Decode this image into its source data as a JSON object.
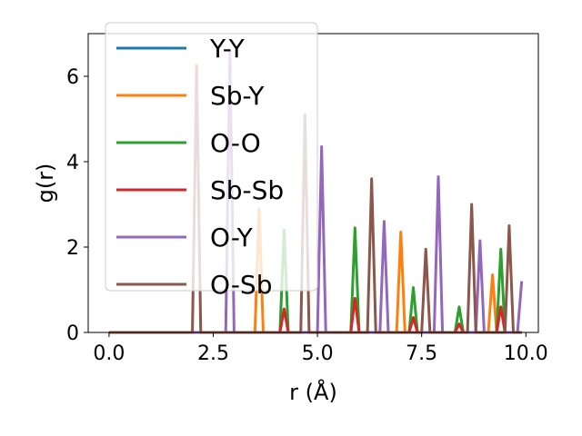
{
  "chart_data": {
    "type": "line",
    "title": "",
    "xlabel": "r (Å)",
    "ylabel": "g(r)",
    "xlim": [
      -0.5,
      10.3
    ],
    "ylim": [
      0,
      7.0
    ],
    "xticks": [
      0.0,
      2.5,
      5.0,
      7.5,
      10.0
    ],
    "xtick_labels": [
      "0.0",
      "2.5",
      "5.0",
      "7.5",
      "10.0"
    ],
    "yticks": [
      0,
      2,
      4,
      6
    ],
    "ytick_labels": [
      "0",
      "2",
      "4",
      "6"
    ],
    "grid": false,
    "legend_position": "top-left",
    "series": [
      {
        "name": "Y-Y",
        "color": "#1f77b4",
        "peaks": []
      },
      {
        "name": "Sb-Y",
        "color": "#ff7f0e",
        "peaks": [
          [
            3.6,
            2.9
          ],
          [
            7.0,
            2.35
          ],
          [
            9.2,
            1.35
          ]
        ]
      },
      {
        "name": "O-O",
        "color": "#2ca02c",
        "peaks": [
          [
            4.2,
            2.4
          ],
          [
            5.9,
            2.45
          ],
          [
            7.3,
            1.05
          ],
          [
            8.4,
            0.6
          ],
          [
            9.4,
            1.95
          ]
        ]
      },
      {
        "name": "Sb-Sb",
        "color": "#d62728",
        "peaks": [
          [
            4.2,
            0.55
          ],
          [
            5.9,
            0.8
          ],
          [
            7.3,
            0.35
          ],
          [
            8.4,
            0.2
          ],
          [
            9.4,
            0.6
          ]
        ]
      },
      {
        "name": "O-Y",
        "color": "#9467bd",
        "peaks": [
          [
            2.9,
            6.6
          ],
          [
            5.1,
            4.35
          ],
          [
            6.6,
            2.6
          ],
          [
            7.9,
            3.65
          ],
          [
            8.9,
            2.15
          ],
          [
            9.9,
            1.2
          ]
        ]
      },
      {
        "name": "O-Sb",
        "color": "#8c564b",
        "peaks": [
          [
            2.1,
            6.25
          ],
          [
            4.7,
            5.1
          ],
          [
            6.3,
            3.6
          ],
          [
            7.6,
            1.95
          ],
          [
            8.7,
            3.0
          ],
          [
            9.6,
            2.5
          ]
        ]
      }
    ]
  }
}
